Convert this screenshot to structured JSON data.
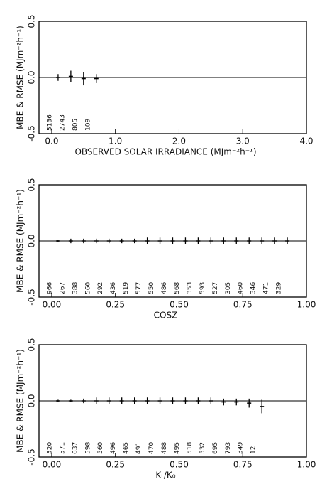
{
  "chart_data": [
    {
      "type": "errorbar",
      "xlabel": "OBSERVED SOLAR IRRADIANCE (MJm⁻²h⁻¹)",
      "ylabel": "MBE & RMSE (MJm⁻²h⁻¹)",
      "x": [
        0.1,
        0.3,
        0.5,
        0.7
      ],
      "values": [
        0.0,
        0.01,
        -0.01,
        -0.01
      ],
      "errors": [
        0.03,
        0.05,
        0.06,
        0.04
      ],
      "counts": [
        "5136",
        "2743",
        "805",
        "109"
      ],
      "xlim": [
        -0.2,
        4.0
      ],
      "xticks": [
        {
          "value": 0,
          "label": "0.0"
        },
        {
          "value": 1,
          "label": "1.0"
        },
        {
          "value": 2,
          "label": "2.0"
        },
        {
          "value": 3,
          "label": "3.0"
        },
        {
          "value": 4,
          "label": "4.0"
        }
      ],
      "ylim": [
        -0.5,
        0.5
      ],
      "yticks": [
        -0.5,
        {
          "value": 0,
          "label": "0.0"
        },
        0.5
      ],
      "color": "#000000"
    },
    {
      "type": "errorbar",
      "xlabel": "COSZ",
      "ylabel": "MBE & RMSE (MJm⁻²h⁻¹)",
      "x": [
        0.025,
        0.075,
        0.125,
        0.175,
        0.225,
        0.275,
        0.325,
        0.375,
        0.425,
        0.475,
        0.525,
        0.575,
        0.625,
        0.675,
        0.725,
        0.775,
        0.825,
        0.875,
        0.925
      ],
      "values": [
        0.0,
        0.0,
        0.0,
        0.0,
        0.0,
        0.0,
        0.0,
        0.0,
        0.0,
        0.0,
        0.0,
        0.0,
        0.0,
        0.0,
        0.0,
        0.0,
        0.0,
        0.0,
        0.0
      ],
      "errors": [
        0.01,
        0.02,
        0.02,
        0.02,
        0.02,
        0.02,
        0.02,
        0.03,
        0.03,
        0.03,
        0.03,
        0.03,
        0.03,
        0.03,
        0.03,
        0.03,
        0.03,
        0.03,
        0.03
      ],
      "counts": [
        "966",
        "267",
        "388",
        "560",
        "292",
        "436",
        "519",
        "577",
        "550",
        "486",
        "568",
        "353",
        "593",
        "527",
        "305",
        "460",
        "346",
        "471",
        "329"
      ],
      "xlim": [
        -0.05,
        1.0
      ],
      "xticks": [
        {
          "value": 0,
          "label": "0.00"
        },
        0.25,
        {
          "value": 0.5,
          "label": "0.50"
        },
        0.75,
        {
          "value": 1,
          "label": "1.00"
        }
      ],
      "ylim": [
        -0.5,
        0.5
      ],
      "yticks": [
        -0.5,
        {
          "value": 0,
          "label": "0.0"
        },
        0.5
      ],
      "color": "#000000"
    },
    {
      "type": "errorbar",
      "xlabel": "Kₜ/K₀",
      "ylabel": "MBE & RMSE (MJm⁻²h⁻¹)",
      "x": [
        0.025,
        0.075,
        0.125,
        0.175,
        0.225,
        0.275,
        0.325,
        0.375,
        0.425,
        0.475,
        0.525,
        0.575,
        0.625,
        0.675,
        0.725,
        0.775,
        0.825
      ],
      "values": [
        0.0,
        0.0,
        0.0,
        0.0,
        0.0,
        0.0,
        0.0,
        0.0,
        0.0,
        0.0,
        0.0,
        0.0,
        0.0,
        -0.01,
        -0.01,
        -0.02,
        -0.05
      ],
      "errors": [
        0.01,
        0.01,
        0.02,
        0.03,
        0.03,
        0.03,
        0.03,
        0.03,
        0.03,
        0.03,
        0.03,
        0.03,
        0.03,
        0.03,
        0.03,
        0.04,
        0.06
      ],
      "counts": [
        "520",
        "571",
        "637",
        "598",
        "560",
        "496",
        "465",
        "491",
        "470",
        "488",
        "495",
        "518",
        "532",
        "695",
        "793",
        "349",
        "12"
      ],
      "xlim": [
        -0.05,
        1.0
      ],
      "xticks": [
        {
          "value": 0,
          "label": "0.00"
        },
        0.25,
        {
          "value": 0.5,
          "label": "0.50"
        },
        0.75,
        {
          "value": 1,
          "label": "1.00"
        }
      ],
      "ylim": [
        -0.5,
        0.5
      ],
      "yticks": [
        -0.5,
        {
          "value": 0,
          "label": "0.0"
        },
        0.5
      ],
      "color": "#000000"
    }
  ]
}
